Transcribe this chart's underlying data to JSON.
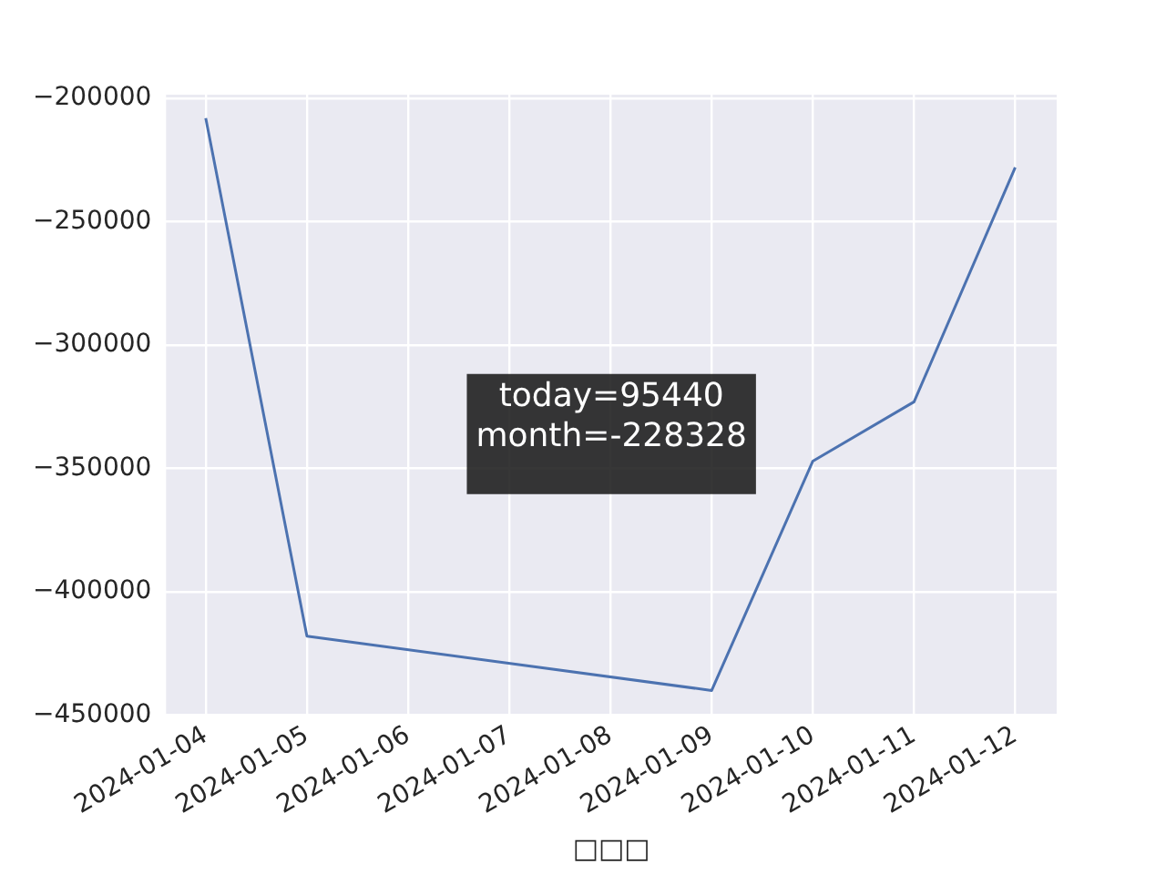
{
  "chart_data": {
    "type": "line",
    "xlabel": "□□□",
    "x": [
      "2024-01-04",
      "2024-01-05",
      "2024-01-09",
      "2024-01-10",
      "2024-01-11",
      "2024-01-12"
    ],
    "series": [
      {
        "color": "#4c72b0",
        "values": [
          -208000,
          -418000,
          -440000,
          -347000,
          -323000,
          -228000
        ]
      }
    ],
    "xlim": [
      "2024-01-03T14:36",
      "2024-01-12T09:50"
    ],
    "xticks": [
      "2024-01-04",
      "2024-01-05",
      "2024-01-06",
      "2024-01-07",
      "2024-01-08",
      "2024-01-09",
      "2024-01-10",
      "2024-01-11",
      "2024-01-12"
    ],
    "ylim": [
      -450000,
      -198500
    ],
    "yticks": [
      -450000,
      -400000,
      -350000,
      -300000,
      -250000,
      -200000
    ],
    "grid": true,
    "legend": false,
    "marker": "none",
    "line_style": "solid",
    "annotations": [
      "today=95440",
      "month=-228328"
    ]
  }
}
